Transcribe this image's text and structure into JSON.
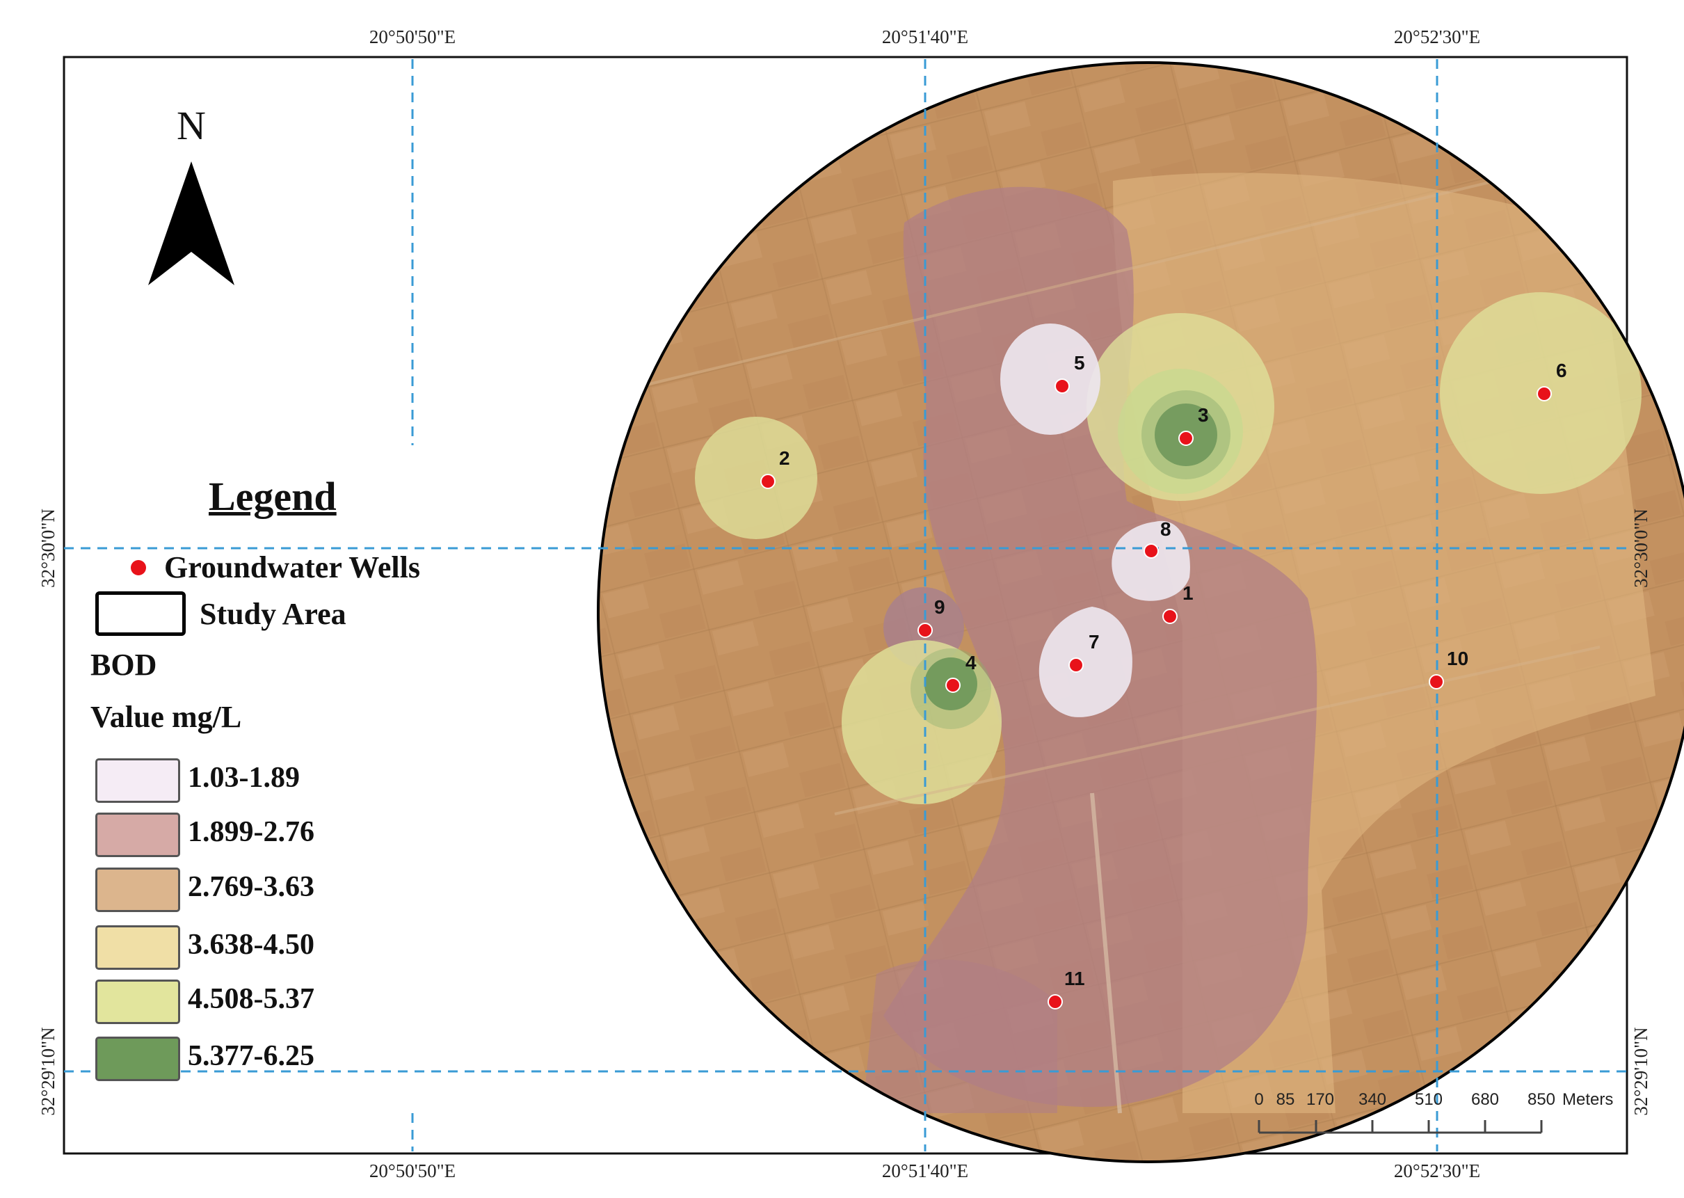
{
  "coordinates": {
    "top": [
      "20°50'50\"E",
      "20°51'40\"E",
      "20°52'30\"E"
    ],
    "bottom": [
      "20°50'50\"E",
      "20°51'40\"E",
      "20°52'30\"E"
    ],
    "left": [
      "32°30'0\"N",
      "32°29'10\"N"
    ],
    "right": [
      "32°30'0\"N",
      "32°29'10\"N"
    ]
  },
  "north_arrow": {
    "label": "N"
  },
  "legend": {
    "title": "Legend",
    "wells_label": "Groundwater Wells",
    "study_area_label": "Study Area",
    "parameter": "BOD",
    "unit_label": "Value mg/L",
    "classes": [
      {
        "label": "1.03-1.89",
        "color": "#f5ecf5"
      },
      {
        "label": "1.899-2.76",
        "color": "#d6aaa6"
      },
      {
        "label": "2.769-3.63",
        "color": "#dcb58d"
      },
      {
        "label": "3.638-4.50",
        "color": "#f0dfa6"
      },
      {
        "label": "4.508-5.37",
        "color": "#e2e59d"
      },
      {
        "label": "5.377-6.25",
        "color": "#6e9a5a"
      }
    ]
  },
  "wells": [
    {
      "id": "1"
    },
    {
      "id": "2"
    },
    {
      "id": "3"
    },
    {
      "id": "4"
    },
    {
      "id": "5"
    },
    {
      "id": "6"
    },
    {
      "id": "7"
    },
    {
      "id": "8"
    },
    {
      "id": "9"
    },
    {
      "id": "10"
    },
    {
      "id": "11"
    }
  ],
  "scale_bar": {
    "ticks": [
      "0",
      "85",
      "170",
      "340",
      "510",
      "680",
      "850"
    ],
    "unit": "Meters"
  },
  "colors": {
    "well": "#e8121a",
    "grid_line": "#3a9bd5",
    "outer_zone": "#c2915f"
  }
}
